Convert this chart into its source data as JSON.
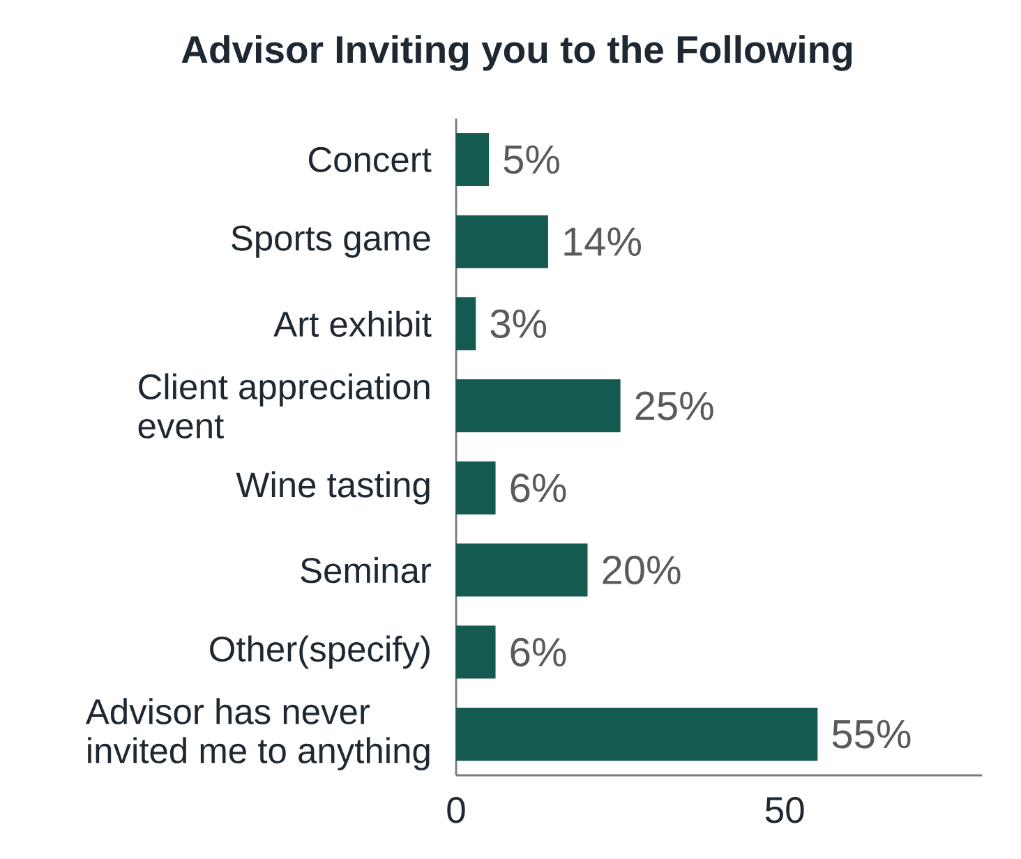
{
  "chart_data": {
    "type": "bar",
    "orientation": "horizontal",
    "title": "Advisor Inviting you to the Following",
    "categories": [
      "Concert",
      "Sports game",
      "Art exhibit",
      "Client appreciation event",
      "Wine tasting",
      "Seminar",
      "Other(specify)",
      "Advisor has never invited me to anything"
    ],
    "values": [
      5,
      14,
      3,
      25,
      6,
      20,
      6,
      55
    ],
    "value_labels": [
      "5%",
      "14%",
      "3%",
      "25%",
      "6%",
      "20%",
      "6%",
      "55%"
    ],
    "color": "#155a50",
    "xlim": [
      0,
      80
    ],
    "xticks": [
      0,
      50
    ]
  }
}
